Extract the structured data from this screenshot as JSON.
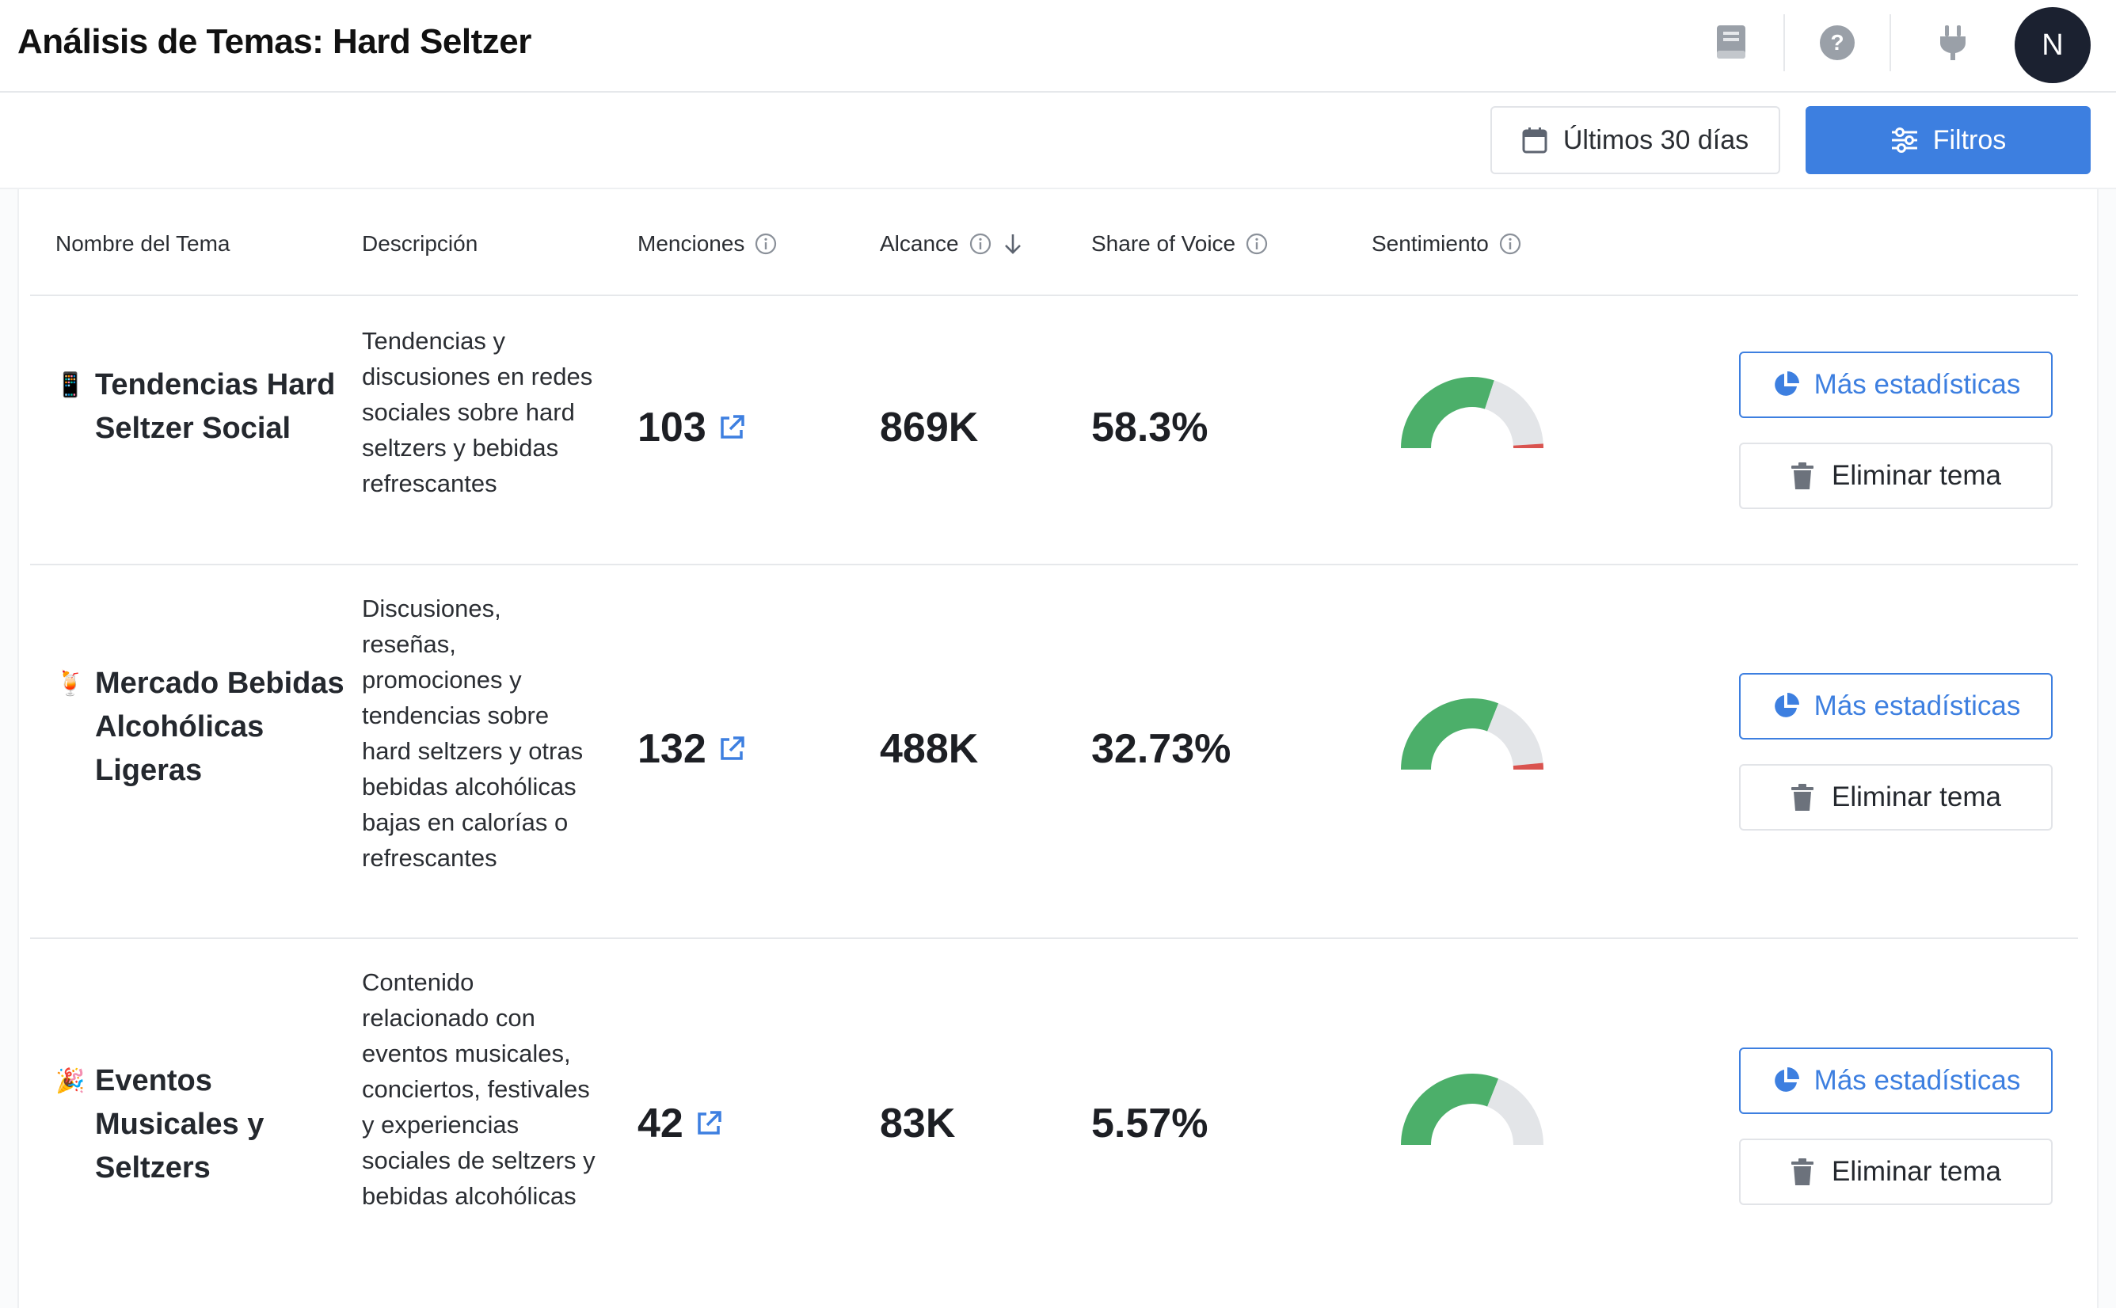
{
  "header": {
    "title": "Análisis de Temas: Hard Seltzer",
    "avatar_initial": "N",
    "icons": [
      "book-icon",
      "help-icon",
      "plug-icon"
    ]
  },
  "toolbar": {
    "date_range_label": "Últimos 30 días",
    "filters_label": "Filtros"
  },
  "table": {
    "columns": {
      "name": "Nombre del Tema",
      "description": "Descripción",
      "mentions": "Menciones",
      "reach": "Alcance",
      "share_of_voice": "Share of Voice",
      "sentiment": "Sentimiento"
    },
    "sorted_column": "Alcance",
    "sort_direction": "descending",
    "rows": [
      {
        "emoji": "📱",
        "name": "Tendencias Hard Seltzer Social",
        "description": "Tendencias y discusiones en redes sociales sobre hard seltzers y bebidas refrescantes",
        "mentions": "103",
        "reach": "869K",
        "share_of_voice": "58.3%",
        "sentiment": {
          "positive": 0.6,
          "neutral": 0.38,
          "negative": 0.02
        },
        "stats_label": "Más estadísticas",
        "delete_label": "Eliminar tema"
      },
      {
        "emoji": "🍹",
        "name": "Mercado Bebidas Alcohólicas Ligeras",
        "description": "Discusiones, reseñas, promociones y tendencias sobre hard seltzers y otras bebidas alcohólicas bajas en calorías o refrescantes",
        "mentions": "132",
        "reach": "488K",
        "share_of_voice": "32.73%",
        "sentiment": {
          "positive": 0.62,
          "neutral": 0.35,
          "negative": 0.03
        },
        "stats_label": "Más estadísticas",
        "delete_label": "Eliminar tema"
      },
      {
        "emoji": "🎉",
        "name": "Eventos Musicales y Seltzers",
        "description": "Contenido relacionado con eventos musicales, conciertos, festivales y experiencias sociales de seltzers y bebidas alcohólicas",
        "mentions": "42",
        "reach": "83K",
        "share_of_voice": "5.57%",
        "sentiment": {
          "positive": 0.62,
          "neutral": 0.38,
          "negative": 0.0
        },
        "stats_label": "Más estadísticas",
        "delete_label": "Eliminar tema"
      }
    ]
  },
  "colors": {
    "accent": "#3d7fe0",
    "positive": "#4caf6a",
    "neutral": "#e3e5e8",
    "negative": "#d9534f",
    "avatar_bg": "#1b2130"
  }
}
